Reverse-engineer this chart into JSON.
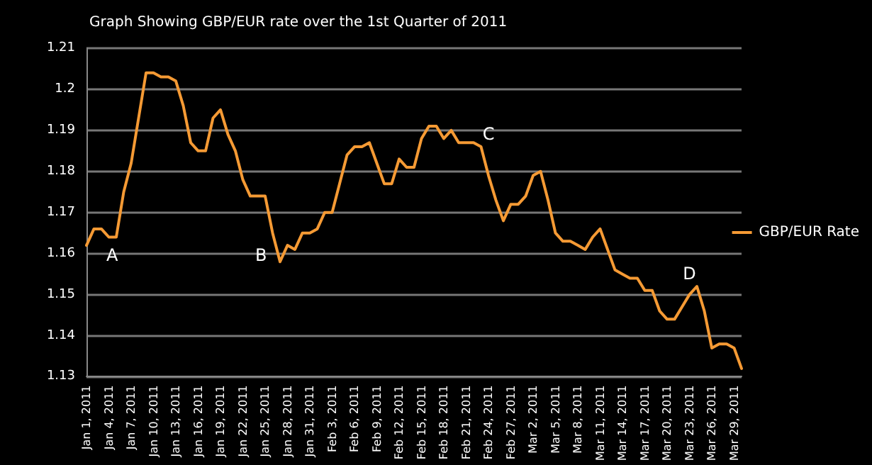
{
  "chart_data": {
    "type": "line",
    "title": "Graph Showing GBP/EUR rate over the 1st Quarter of 2011",
    "categories": [
      "Jan 1, 2011",
      null,
      null,
      "Jan 4, 2011",
      null,
      null,
      "Jan 7, 2011",
      null,
      null,
      "Jan 10, 2011",
      null,
      null,
      "Jan 13, 2011",
      null,
      null,
      "Jan 16, 2011",
      null,
      null,
      "Jan 19, 2011",
      null,
      null,
      "Jan 22, 2011",
      null,
      null,
      "Jan 25, 2011",
      null,
      null,
      "Jan 28, 2011",
      null,
      null,
      "Jan 31, 2011",
      null,
      null,
      "Feb 3, 2011",
      null,
      null,
      "Feb 6, 2011",
      null,
      null,
      "Feb 9, 2011",
      null,
      null,
      "Feb 12, 2011",
      null,
      null,
      "Feb 15, 2011",
      null,
      null,
      "Feb 18, 2011",
      null,
      null,
      "Feb 21, 2011",
      null,
      null,
      "Feb 24, 2011",
      null,
      null,
      "Feb 27, 2011",
      null,
      null,
      "Mar 2, 2011",
      null,
      null,
      "Mar 5, 2011",
      null,
      null,
      "Mar 8, 2011",
      null,
      null,
      "Mar 11, 2011",
      null,
      null,
      "Mar 14, 2011",
      null,
      null,
      "Mar 17, 2011",
      null,
      null,
      "Mar 20, 2011",
      null,
      null,
      "Mar 23, 2011",
      null,
      null,
      "Mar 26, 2011",
      null,
      null,
      "Mar 29, 2011",
      null
    ],
    "series": [
      {
        "name": "GBP/EUR Rate",
        "color": "#f59a34",
        "values": [
          1.162,
          1.166,
          1.166,
          1.164,
          1.164,
          1.175,
          1.182,
          1.193,
          1.204,
          1.204,
          1.203,
          1.203,
          1.202,
          1.196,
          1.187,
          1.185,
          1.185,
          1.193,
          1.195,
          1.189,
          1.185,
          1.178,
          1.174,
          1.174,
          1.174,
          1.165,
          1.158,
          1.162,
          1.161,
          1.165,
          1.165,
          1.166,
          1.17,
          1.17,
          1.177,
          1.184,
          1.186,
          1.186,
          1.187,
          1.182,
          1.177,
          1.177,
          1.183,
          1.181,
          1.181,
          1.188,
          1.191,
          1.191,
          1.188,
          1.19,
          1.187,
          1.187,
          1.187,
          1.186,
          1.179,
          1.173,
          1.168,
          1.172,
          1.172,
          1.174,
          1.179,
          1.18,
          1.173,
          1.165,
          1.163,
          1.163,
          1.162,
          1.161,
          1.164,
          1.166,
          1.161,
          1.156,
          1.155,
          1.154,
          1.154,
          1.151,
          1.151,
          1.146,
          1.144,
          1.144,
          1.147,
          1.15,
          1.152,
          1.146,
          1.137,
          1.138,
          1.138,
          1.137,
          1.132
        ]
      }
    ],
    "ylim": [
      1.13,
      1.21
    ],
    "yticks": [
      1.13,
      1.14,
      1.15,
      1.16,
      1.17,
      1.18,
      1.19,
      1.2,
      1.21
    ],
    "grid": "y",
    "legend": "right",
    "marker": "none",
    "line_style": "solid",
    "annotations": [
      "A",
      "B",
      {
        "text": "C",
        "x": "Feb 24, 2011",
        "y": 1.187
      },
      {
        "text": "D",
        "x": "Mar 23, 2011",
        "y": 1.153
      }
    ]
  }
}
